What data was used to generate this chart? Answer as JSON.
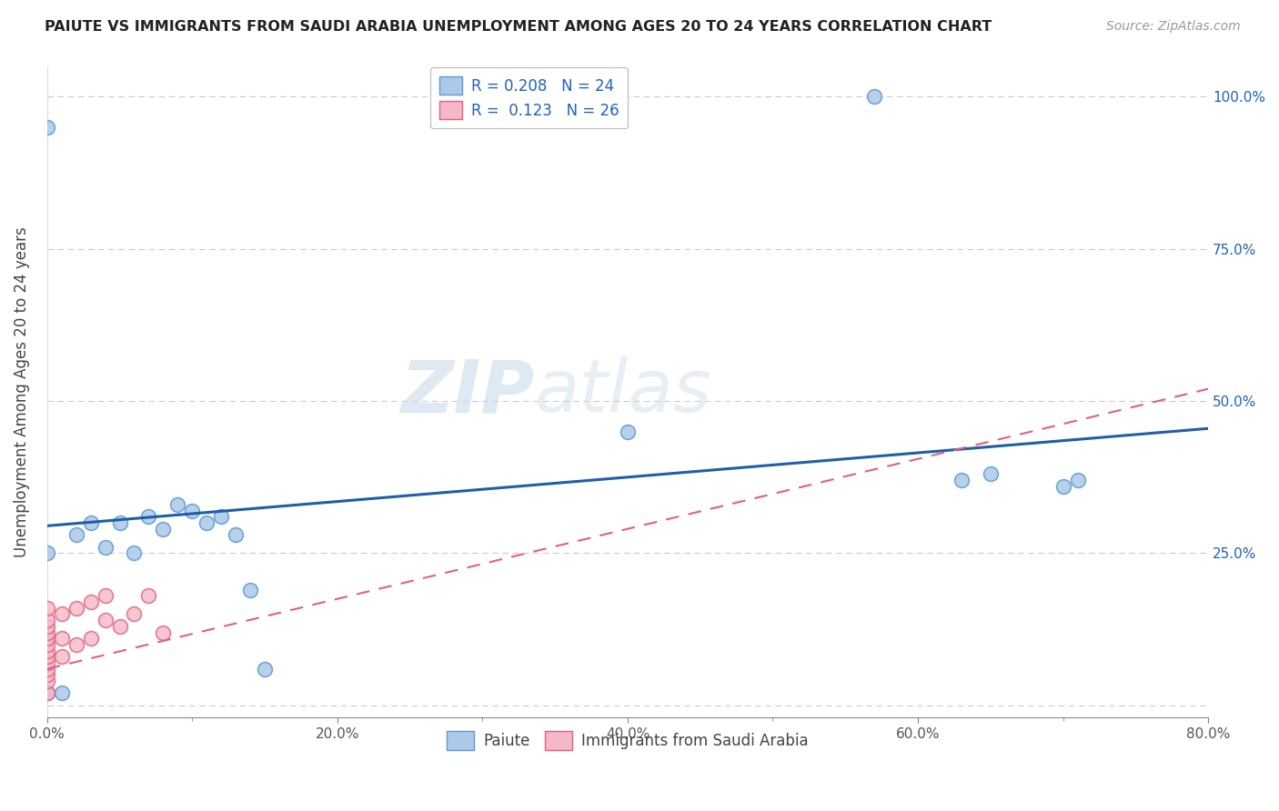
{
  "title": "PAIUTE VS IMMIGRANTS FROM SAUDI ARABIA UNEMPLOYMENT AMONG AGES 20 TO 24 YEARS CORRELATION CHART",
  "source": "Source: ZipAtlas.com",
  "ylabel": "Unemployment Among Ages 20 to 24 years",
  "xlim": [
    0.0,
    0.8
  ],
  "ylim": [
    -0.02,
    1.05
  ],
  "xticks": [
    0.0,
    0.2,
    0.4,
    0.6,
    0.8
  ],
  "xticklabels": [
    "0.0%",
    "20.0%",
    "40.0%",
    "60.0%",
    "80.0%"
  ],
  "yticks": [
    0.0,
    0.25,
    0.5,
    0.75,
    1.0
  ],
  "yticklabels": [
    "",
    "25.0%",
    "50.0%",
    "75.0%",
    "100.0%"
  ],
  "paiute_color": "#adc8e8",
  "paiute_edge": "#5b9bd5",
  "saudi_color": "#f4b8c8",
  "saudi_edge": "#e06080",
  "line_paiute_color": "#1f5fa6",
  "line_saudi_color": "#e06080",
  "watermark_zip": "ZIP",
  "watermark_atlas": "atlas",
  "background_color": "#ffffff",
  "grid_color": "#cccccc",
  "paiute_x": [
    0.0,
    0.0,
    0.02,
    0.03,
    0.04,
    0.05,
    0.06,
    0.07,
    0.08,
    0.09,
    0.1,
    0.11,
    0.13,
    0.14,
    0.4,
    0.57,
    0.63,
    0.65,
    0.7,
    0.71,
    0.0,
    0.01,
    0.12,
    0.15
  ],
  "paiute_y": [
    0.95,
    0.25,
    0.28,
    0.3,
    0.26,
    0.3,
    0.25,
    0.31,
    0.29,
    0.33,
    0.32,
    0.3,
    0.28,
    0.19,
    0.45,
    1.0,
    0.37,
    0.38,
    0.36,
    0.37,
    0.02,
    0.02,
    0.31,
    0.06
  ],
  "saudi_x": [
    0.0,
    0.0,
    0.0,
    0.0,
    0.0,
    0.0,
    0.0,
    0.0,
    0.0,
    0.0,
    0.0,
    0.0,
    0.0,
    0.01,
    0.01,
    0.01,
    0.02,
    0.02,
    0.03,
    0.03,
    0.04,
    0.04,
    0.05,
    0.06,
    0.07,
    0.08
  ],
  "saudi_y": [
    0.02,
    0.04,
    0.05,
    0.06,
    0.07,
    0.08,
    0.09,
    0.1,
    0.11,
    0.12,
    0.13,
    0.14,
    0.16,
    0.08,
    0.11,
    0.15,
    0.1,
    0.16,
    0.11,
    0.17,
    0.14,
    0.18,
    0.13,
    0.15,
    0.18,
    0.12
  ],
  "paiute_line_x": [
    0.0,
    0.8
  ],
  "paiute_line_y": [
    0.295,
    0.455
  ],
  "saudi_line_x": [
    0.0,
    0.8
  ],
  "saudi_line_y": [
    0.06,
    0.52
  ]
}
